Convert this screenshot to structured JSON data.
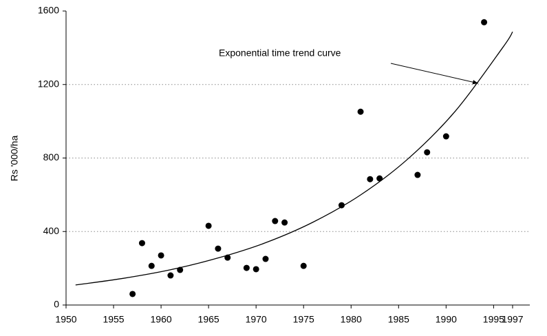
{
  "chart_data": {
    "type": "scatter",
    "y_label": "Rs '000/ha",
    "annotation": "Exponential time trend curve",
    "x": [
      1957,
      1958,
      1959,
      1960,
      1961,
      1962,
      1965,
      1966,
      1967,
      1969,
      1970,
      1971,
      1972,
      1973,
      1975,
      1979,
      1981,
      1982,
      1983,
      1987,
      1988,
      1990,
      1994
    ],
    "values": [
      60,
      337,
      213,
      270,
      161,
      191,
      431,
      307,
      258,
      202,
      195,
      251,
      457,
      449,
      213,
      543,
      1052,
      685,
      689,
      708,
      831,
      918,
      1539
    ],
    "color": "#000000",
    "trend": {
      "x": [
        1951,
        1956,
        1961,
        1966,
        1971,
        1976,
        1981,
        1986,
        1991,
        1996,
        1997
      ],
      "values": [
        109,
        145,
        192,
        256,
        339,
        451,
        599,
        796,
        1057,
        1404,
        1487
      ]
    },
    "xlim": [
      1950,
      1997
    ],
    "xticks": [
      1950,
      1955,
      1960,
      1965,
      1970,
      1975,
      1980,
      1985,
      1990,
      1995,
      1997
    ],
    "ylim": [
      0,
      1600
    ],
    "yticks": [
      0,
      400,
      800,
      1200,
      1600
    ],
    "grid": true
  }
}
